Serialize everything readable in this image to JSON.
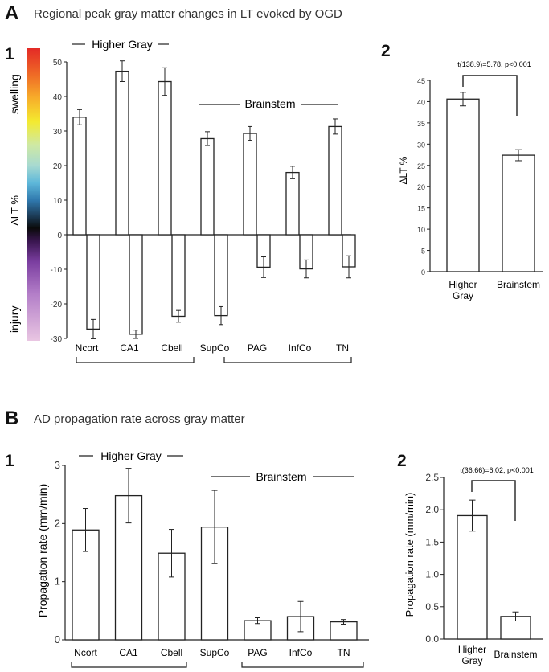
{
  "chart_data": [
    {
      "panel": "A",
      "sub": "1",
      "type": "bar",
      "title": "Regional peak gray matter changes in LT evoked by OGD",
      "ylabel": "ΔLT %",
      "ylim": [
        -30,
        50
      ],
      "yticks": [
        -30,
        -20,
        -10,
        0,
        10,
        20,
        30,
        40,
        50
      ],
      "colorbar": {
        "top_label": "swelling",
        "bottom_label": "injury"
      },
      "group_labels": [
        "Higher Gray",
        "Brainstem"
      ],
      "categories": [
        "Ncort",
        "CA1",
        "Cbell",
        "SupCo",
        "PAG",
        "InfCo",
        "TN"
      ],
      "series": [
        {
          "values": [
            34,
            47.3,
            44.3,
            27.8,
            29.3,
            18.0,
            31.3
          ],
          "errors": [
            2.2,
            3.0,
            4.0,
            2.0,
            2.0,
            1.8,
            2.2
          ]
        },
        {
          "values": [
            -27.3,
            -28.8,
            -23.6,
            -23.4,
            -9.4,
            -9.9,
            -9.3
          ],
          "errors": [
            2.8,
            1.2,
            1.7,
            2.6,
            3.0,
            2.6,
            3.2
          ]
        }
      ]
    },
    {
      "panel": "A",
      "sub": "2",
      "type": "bar",
      "ylabel": "ΔLT %",
      "ylim": [
        0,
        45
      ],
      "yticks": [
        0,
        5,
        10,
        15,
        20,
        25,
        30,
        35,
        40,
        45
      ],
      "annotation": "t(138.9)=5.78, p<0.001",
      "categories": [
        "Higher Gray",
        "Brainstem"
      ],
      "values": [
        40.6,
        27.4
      ],
      "errors": [
        1.6,
        1.3
      ]
    },
    {
      "panel": "B",
      "sub": "1",
      "type": "bar",
      "title": "AD propagation rate across gray matter",
      "ylabel": "Propagation rate (mm/min)",
      "ylim": [
        0,
        3
      ],
      "yticks": [
        0,
        1,
        2,
        3
      ],
      "group_labels": [
        "Higher Gray",
        "Brainstem"
      ],
      "categories": [
        "Ncort",
        "CA1",
        "Cbell",
        "SupCo",
        "PAG",
        "InfCo",
        "TN"
      ],
      "values": [
        1.89,
        2.48,
        1.49,
        1.94,
        0.33,
        0.4,
        0.31
      ],
      "errors": [
        0.37,
        0.47,
        0.41,
        0.63,
        0.05,
        0.26,
        0.04
      ]
    },
    {
      "panel": "B",
      "sub": "2",
      "type": "bar",
      "ylabel": "Propagation rate (mm/min)",
      "ylim": [
        0,
        2.5
      ],
      "yticks": [
        "0.0",
        "0.5",
        "1.0",
        "1.5",
        "2.0",
        "2.5"
      ],
      "annotation": "t(36.66)=6.02, p<0.001",
      "categories": [
        "Higher Gray",
        "Brainstem"
      ],
      "values": [
        1.91,
        0.35
      ],
      "errors": [
        0.24,
        0.07
      ]
    }
  ]
}
